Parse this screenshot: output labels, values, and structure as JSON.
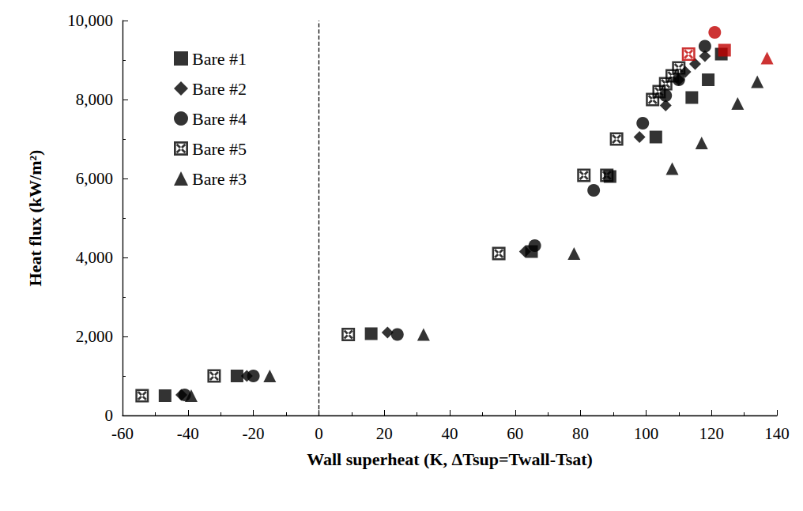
{
  "chart_data": {
    "type": "scatter",
    "x_label": "Wall superheat (K, ΔTsup=Twall-Tsat)",
    "y_label": "Heat flux (kW/m²)",
    "xlim": [
      -60,
      140
    ],
    "xticks": [
      -60,
      -40,
      -20,
      0,
      20,
      40,
      60,
      80,
      100,
      120,
      140
    ],
    "ylim": [
      0,
      10000
    ],
    "yticks": [
      0,
      2000,
      4000,
      6000,
      8000,
      10000
    ],
    "grid": false,
    "legend": "upper left",
    "reference_lines": [
      {
        "x": 0,
        "line_style": "dashed"
      }
    ],
    "series": [
      {
        "name": "Bare #1",
        "marker": "square",
        "color": "#000000",
        "x": [
          -47,
          -25,
          16,
          65,
          89,
          103,
          114,
          119,
          123,
          124
        ],
        "values": [
          500,
          1000,
          2070,
          4150,
          6050,
          7050,
          8050,
          8500,
          9150,
          9250
        ],
        "colors": [
          "#000000",
          "#000000",
          "#000000",
          "#000000",
          "#000000",
          "#000000",
          "#000000",
          "#000000",
          "#000000",
          "#c00000"
        ]
      },
      {
        "name": "Bare #2",
        "marker": "diamond",
        "color": "#000000",
        "x": [
          -42,
          -22,
          21,
          63,
          98,
          106,
          110,
          112,
          115,
          118
        ],
        "values": [
          520,
          1000,
          2100,
          4150,
          7050,
          7850,
          8500,
          8700,
          8900,
          9100
        ],
        "colors": [
          "#000000",
          "#000000",
          "#000000",
          "#000000",
          "#000000",
          "#000000",
          "#000000",
          "#000000",
          "#000000",
          "#000000"
        ]
      },
      {
        "name": "Bare #4",
        "marker": "circle",
        "color": "#000000",
        "x": [
          -41,
          -20,
          24,
          66,
          84,
          99,
          106,
          110,
          118,
          121
        ],
        "values": [
          520,
          1000,
          2050,
          4300,
          5700,
          7400,
          8100,
          8500,
          9350,
          9700
        ],
        "colors": [
          "#000000",
          "#000000",
          "#000000",
          "#000000",
          "#000000",
          "#000000",
          "#000000",
          "#000000",
          "#000000",
          "#c00000"
        ]
      },
      {
        "name": "Bare #5",
        "marker": "square_x",
        "color": "#000000",
        "x": [
          -54,
          -32,
          9,
          55,
          81,
          88,
          91,
          102,
          104,
          106,
          108,
          110,
          113
        ],
        "values": [
          500,
          1000,
          2050,
          4100,
          6080,
          6080,
          7000,
          8000,
          8200,
          8400,
          8600,
          8800,
          9150
        ],
        "colors": [
          "#000000",
          "#000000",
          "#000000",
          "#000000",
          "#000000",
          "#000000",
          "#000000",
          "#000000",
          "#000000",
          "#000000",
          "#000000",
          "#000000",
          "#c00000"
        ]
      },
      {
        "name": "Bare #3",
        "marker": "triangle",
        "color": "#000000",
        "x": [
          -39,
          -15,
          32,
          78,
          108,
          117,
          128,
          134,
          137
        ],
        "values": [
          500,
          1000,
          2050,
          4100,
          6250,
          6900,
          7900,
          8450,
          9050
        ],
        "colors": [
          "#000000",
          "#000000",
          "#000000",
          "#000000",
          "#000000",
          "#000000",
          "#000000",
          "#000000",
          "#c00000"
        ]
      }
    ]
  }
}
